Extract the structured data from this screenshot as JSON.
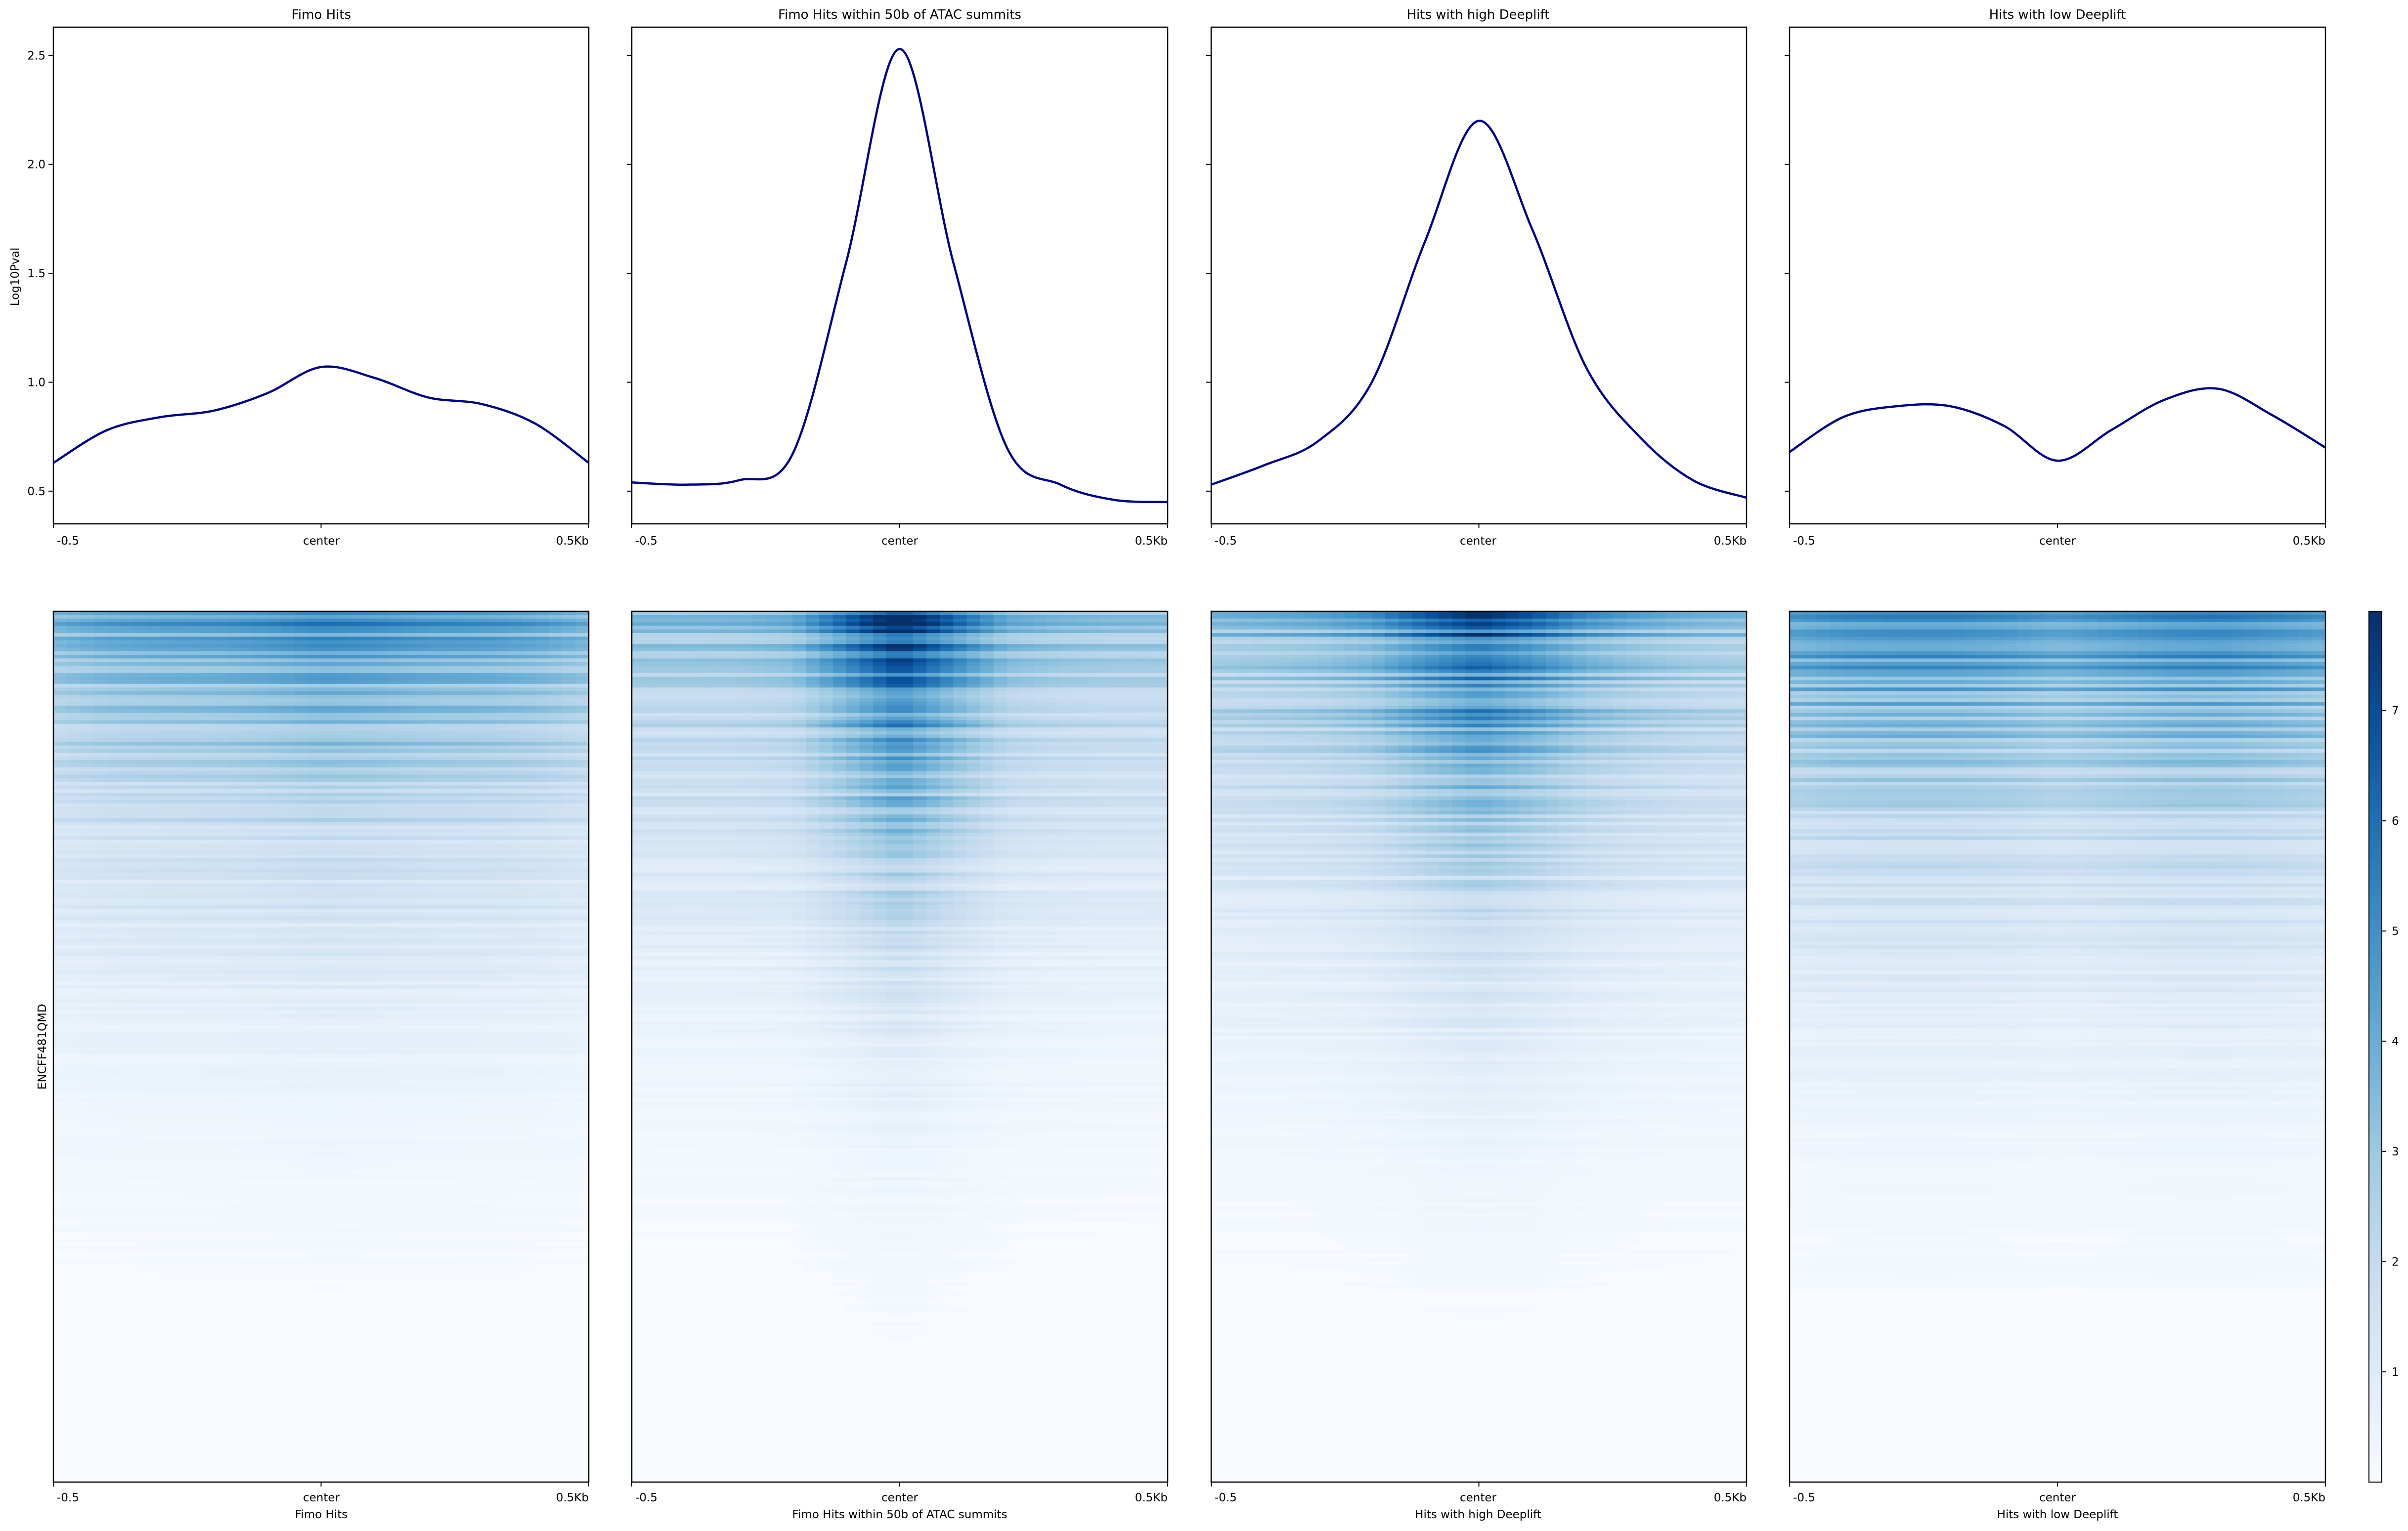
{
  "chart_data": {
    "type": "heatmap",
    "description_type": "profile-plus-heatmap",
    "panels": [
      {
        "title": "Fimo Hits",
        "xlabel": "Fimo Hits",
        "profile": {
          "type": "line",
          "x": [
            -0.5,
            -0.4,
            -0.3,
            -0.2,
            -0.1,
            0.0,
            0.1,
            0.2,
            0.3,
            0.4,
            0.5
          ],
          "y": [
            0.63,
            0.78,
            0.84,
            0.87,
            0.95,
            1.07,
            1.02,
            0.93,
            0.9,
            0.81,
            0.63
          ],
          "color": "#00008b"
        },
        "heatmap_peak_intensity": 5.0,
        "heatmap_center_bias": 0.25
      },
      {
        "title": "Fimo Hits within 50b of ATAC summits",
        "xlabel": "Fimo Hits within 50b of ATAC summits",
        "profile": {
          "type": "line",
          "x": [
            -0.5,
            -0.4,
            -0.3,
            -0.2,
            -0.1,
            0.0,
            0.1,
            0.2,
            0.3,
            0.4,
            0.5
          ],
          "y": [
            0.54,
            0.53,
            0.55,
            0.67,
            1.55,
            2.53,
            1.55,
            0.7,
            0.53,
            0.46,
            0.45
          ],
          "color": "#00008b"
        },
        "heatmap_peak_intensity": 7.8,
        "heatmap_center_bias": 0.9
      },
      {
        "title": "Hits with high Deeplift",
        "xlabel": "Hits with high Deeplift",
        "profile": {
          "type": "line",
          "x": [
            -0.5,
            -0.4,
            -0.3,
            -0.2,
            -0.1,
            0.0,
            0.1,
            0.2,
            0.3,
            0.4,
            0.5
          ],
          "y": [
            0.53,
            0.62,
            0.73,
            1.0,
            1.65,
            2.2,
            1.7,
            1.07,
            0.75,
            0.55,
            0.47
          ],
          "color": "#00008b"
        },
        "heatmap_peak_intensity": 7.0,
        "heatmap_center_bias": 0.75
      },
      {
        "title": "Hits with low Deeplift",
        "xlabel": "Hits with low Deeplift",
        "profile": {
          "type": "line",
          "x": [
            -0.5,
            -0.4,
            -0.3,
            -0.2,
            -0.1,
            0.0,
            0.1,
            0.2,
            0.3,
            0.4,
            0.5
          ],
          "y": [
            0.68,
            0.84,
            0.89,
            0.89,
            0.8,
            0.64,
            0.78,
            0.92,
            0.97,
            0.85,
            0.7
          ],
          "color": "#00008b"
        },
        "heatmap_peak_intensity": 5.5,
        "heatmap_center_bias": 0.0
      }
    ],
    "profile_ylabel": "Log10Pval",
    "profile_ylim": [
      0.35,
      2.63
    ],
    "profile_yticks": [
      "0.5",
      "1.0",
      "1.5",
      "2.0",
      "2.5"
    ],
    "xticks": [
      "-0.5",
      "center",
      "0.5Kb"
    ],
    "heatmap_ylabel": "ENCFF481QMD",
    "colorbar": {
      "colormap": "Blues",
      "range": [
        0,
        7.9
      ],
      "ticks": [
        "1",
        "2",
        "3",
        "4",
        "5",
        "6",
        "7"
      ]
    },
    "grid": false,
    "legend": "none"
  }
}
